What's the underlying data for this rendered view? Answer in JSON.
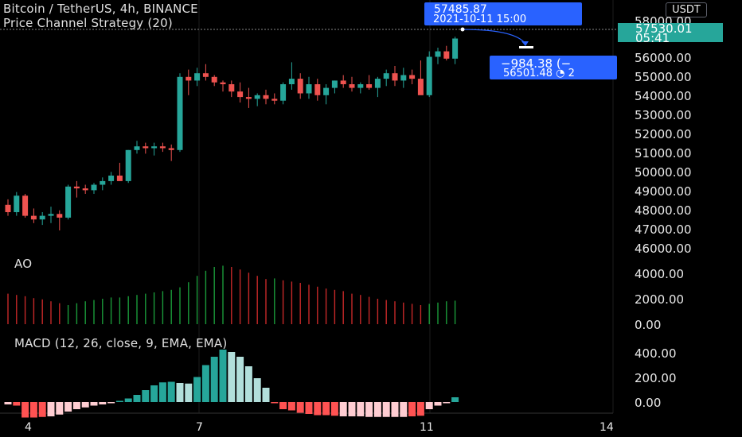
{
  "header": {
    "title": "Bitcoin / TetherUS, 4h, BINANCE",
    "strategy": "Price Channel Strategy (20)"
  },
  "price_axis": {
    "currency": "USDT",
    "labels": [
      "58000.00",
      "56000.00",
      "55000.00",
      "54000.00",
      "53000.00",
      "52000.00",
      "51000.00",
      "50000.00",
      "49000.00",
      "48000.00",
      "47000.00",
      "46000.00"
    ],
    "last_price": "57530.01",
    "countdown": "05:41"
  },
  "trade_tooltip": {
    "entry_price": "57485.87",
    "entry_time": "2021-10-11 15:00",
    "profit": "−984.38 (−",
    "exit_price": "56501.48",
    "exit_suffix": "2"
  },
  "ao": {
    "label": "AO",
    "axis": [
      "4000.00",
      "2000.00",
      "0.00"
    ]
  },
  "macd": {
    "label": "MACD (12, 26, close, 9, EMA, EMA)",
    "axis": [
      "400.00",
      "200.00",
      "0.00"
    ]
  },
  "time_axis": [
    "4",
    "7",
    "11",
    "14"
  ],
  "colors": {
    "up": "#26a69a",
    "down": "#ef5350",
    "accent": "#2962ff",
    "bg": "#000000"
  },
  "chart_data": [
    {
      "type": "candlestick",
      "title": "Bitcoin / TetherUS, 4h, BINANCE",
      "y_range": [
        45900,
        58300
      ],
      "candles": [
        [
          48400,
          48700,
          47800,
          48000
        ],
        [
          48000,
          49100,
          47800,
          48900
        ],
        [
          48900,
          49000,
          47700,
          47800
        ],
        [
          47800,
          48200,
          47400,
          47600
        ],
        [
          47600,
          48000,
          47300,
          47800
        ],
        [
          47800,
          48300,
          47400,
          47900
        ],
        [
          47900,
          48100,
          47000,
          47700
        ],
        [
          47700,
          49500,
          47600,
          49400
        ],
        [
          49400,
          49700,
          48800,
          49300
        ],
        [
          49300,
          49500,
          49000,
          49200
        ],
        [
          49200,
          49600,
          49000,
          49500
        ],
        [
          49500,
          49900,
          49200,
          49700
        ],
        [
          49700,
          50200,
          49500,
          50000
        ],
        [
          50000,
          50700,
          49800,
          49700
        ],
        [
          49700,
          51400,
          49600,
          51400
        ],
        [
          51400,
          51900,
          51200,
          51600
        ],
        [
          51600,
          51800,
          51200,
          51500
        ],
        [
          51500,
          51800,
          51100,
          51600
        ],
        [
          51600,
          51800,
          51300,
          51500
        ],
        [
          51500,
          51700,
          50800,
          51400
        ],
        [
          51400,
          55600,
          51300,
          55400
        ],
        [
          55400,
          55800,
          54400,
          55200
        ],
        [
          55200,
          55900,
          54900,
          55600
        ],
        [
          55600,
          56100,
          55200,
          55400
        ],
        [
          55400,
          55500,
          54900,
          55100
        ],
        [
          55100,
          55200,
          54600,
          55000
        ],
        [
          55000,
          55200,
          54300,
          54600
        ],
        [
          54600,
          55100,
          54000,
          54300
        ],
        [
          54300,
          54800,
          53700,
          54200
        ],
        [
          54200,
          54500,
          53800,
          54400
        ],
        [
          54400,
          54700,
          53900,
          54200
        ],
        [
          54200,
          54500,
          53900,
          54100
        ],
        [
          54100,
          55100,
          53900,
          55000
        ],
        [
          55000,
          56200,
          54700,
          55300
        ],
        [
          55300,
          55600,
          54200,
          54500
        ],
        [
          54500,
          55400,
          54200,
          55000
        ],
        [
          55000,
          55300,
          54100,
          54400
        ],
        [
          54400,
          55000,
          53900,
          54800
        ],
        [
          54800,
          55200,
          54500,
          55200
        ],
        [
          55200,
          55500,
          54800,
          55000
        ],
        [
          55000,
          55400,
          54600,
          54800
        ],
        [
          54800,
          55100,
          54500,
          55000
        ],
        [
          55000,
          55500,
          54700,
          54800
        ],
        [
          54800,
          55400,
          54300,
          55300
        ],
        [
          55300,
          55800,
          54900,
          55600
        ],
        [
          55600,
          56000,
          54900,
          55200
        ],
        [
          55200,
          55900,
          54800,
          55500
        ],
        [
          55500,
          55800,
          55000,
          55300
        ],
        [
          55300,
          56300,
          54500,
          54400
        ],
        [
          54400,
          56800,
          54300,
          56500
        ],
        [
          56500,
          57000,
          56100,
          56800
        ],
        [
          56800,
          57100,
          56300,
          56400
        ],
        [
          56400,
          57600,
          56100,
          57500
        ]
      ]
    },
    {
      "type": "bar",
      "title": "AO",
      "y_range": [
        0,
        4900
      ],
      "values": [
        2400,
        2300,
        2200,
        2050,
        1950,
        1800,
        1650,
        1500,
        1650,
        1800,
        1900,
        2000,
        2100,
        2100,
        2200,
        2300,
        2400,
        2500,
        2600,
        2700,
        2900,
        3300,
        3800,
        4200,
        4500,
        4600,
        4500,
        4300,
        4050,
        3800,
        3550,
        3600,
        3450,
        3350,
        3250,
        3100,
        2950,
        2800,
        2700,
        2600,
        2400,
        2300,
        2150,
        2000,
        1900,
        1800,
        1700,
        1600,
        1500,
        1600,
        1700,
        1800,
        1850
      ],
      "colors": [
        "d",
        "d",
        "d",
        "d",
        "d",
        "d",
        "d",
        "u",
        "u",
        "u",
        "u",
        "u",
        "u",
        "u",
        "u",
        "u",
        "u",
        "u",
        "u",
        "u",
        "u",
        "u",
        "u",
        "u",
        "u",
        "u",
        "d",
        "d",
        "d",
        "d",
        "d",
        "u",
        "d",
        "d",
        "d",
        "d",
        "d",
        "d",
        "d",
        "d",
        "d",
        "d",
        "d",
        "d",
        "d",
        "d",
        "d",
        "d",
        "d",
        "u",
        "u",
        "u",
        "u"
      ]
    },
    {
      "type": "bar",
      "title": "MACD (12, 26, close, 9, EMA, EMA)",
      "y_range": [
        -150,
        480
      ],
      "values": [
        -20,
        -30,
        -130,
        -130,
        -125,
        -120,
        -105,
        -80,
        -60,
        -45,
        -30,
        -20,
        -10,
        10,
        30,
        60,
        100,
        140,
        165,
        170,
        160,
        155,
        210,
        310,
        380,
        440,
        420,
        380,
        300,
        200,
        120,
        -10,
        -60,
        -70,
        -90,
        -100,
        -110,
        -110,
        -115,
        -120,
        -120,
        -120,
        -125,
        -125,
        -125,
        -125,
        -125,
        -120,
        -115,
        -60,
        -30,
        -10,
        40
      ],
      "colors": [
        "d",
        "D",
        "D",
        "D",
        "D",
        "d",
        "d",
        "d",
        "d",
        "d",
        "d",
        "d",
        "d",
        "U",
        "U",
        "U",
        "U",
        "U",
        "U",
        "U",
        "u",
        "u",
        "U",
        "U",
        "U",
        "U",
        "u",
        "u",
        "u",
        "u",
        "u",
        "D",
        "D",
        "D",
        "D",
        "D",
        "D",
        "D",
        "D",
        "d",
        "d",
        "d",
        "d",
        "d",
        "d",
        "d",
        "d",
        "D",
        "D",
        "d",
        "d",
        "d",
        "U"
      ]
    }
  ]
}
